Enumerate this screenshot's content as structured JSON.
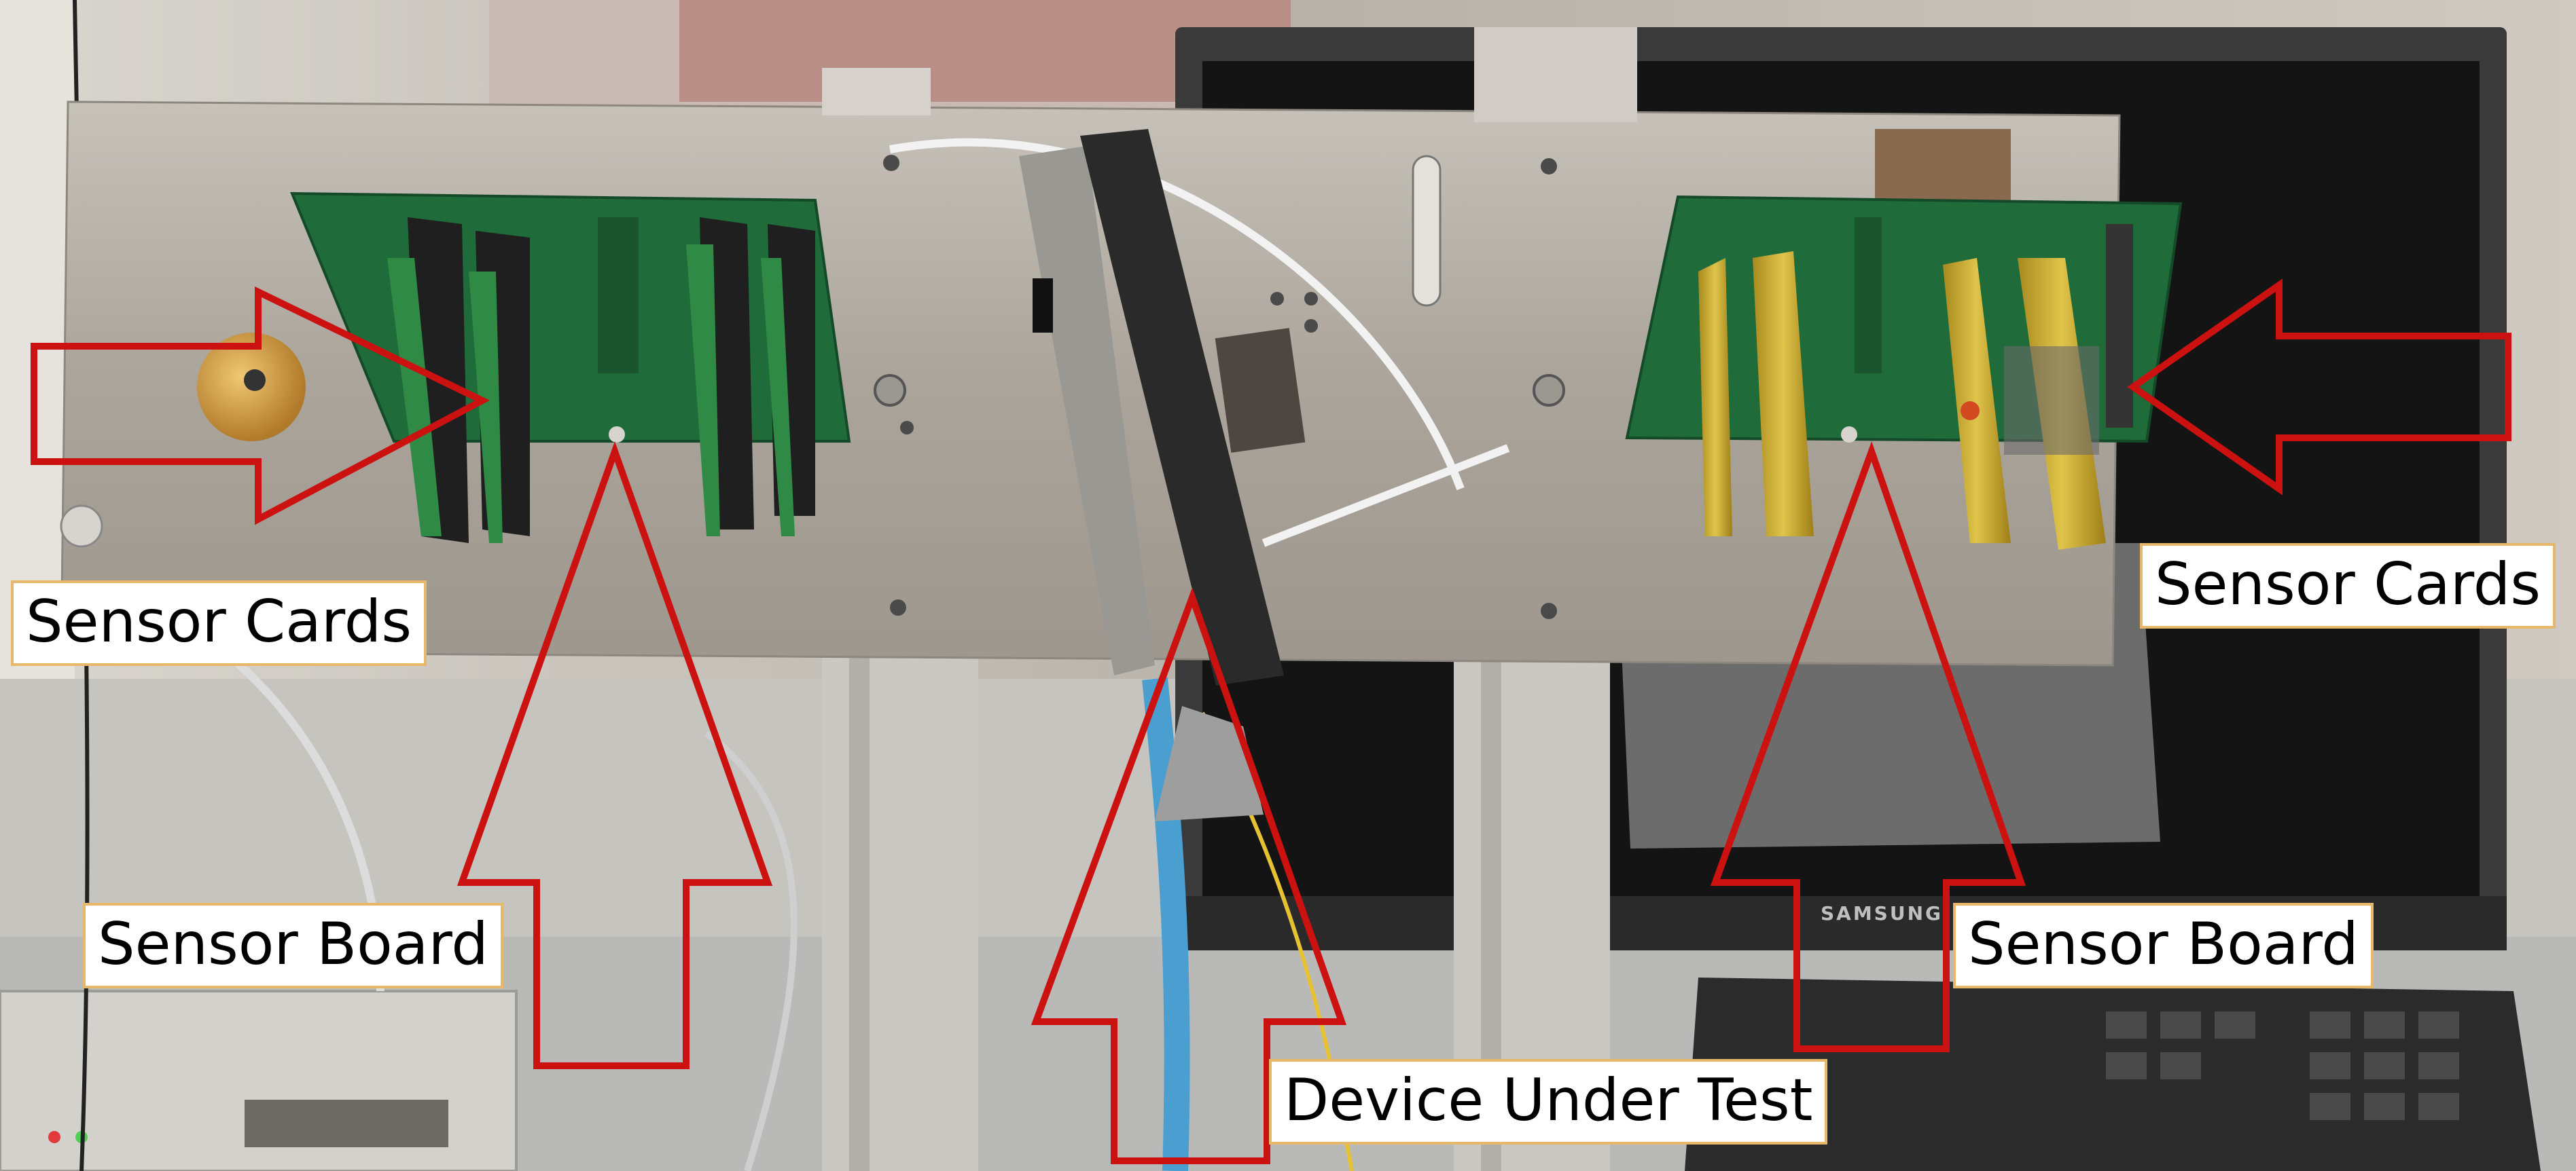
{
  "labels": {
    "sensor_cards_left": "Sensor Cards",
    "sensor_cards_right": "Sensor Cards",
    "sensor_board_left": "Sensor Board",
    "sensor_board_right": "Sensor Board",
    "device_under_test": "Device Under Test"
  },
  "monitor_brand": "SAMSUNG",
  "colors": {
    "arrow": "#cc1111",
    "label_border": "#e8b86a",
    "pcb_green": "#1f6b3a",
    "plate_metal": "#b3ada4"
  }
}
